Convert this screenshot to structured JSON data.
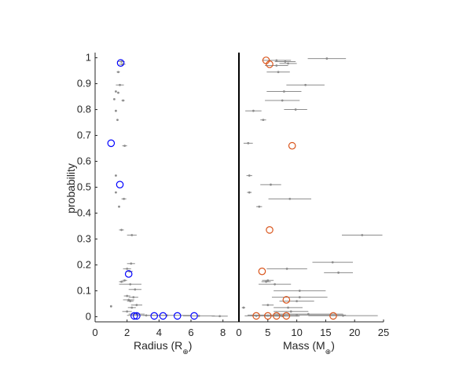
{
  "colors": {
    "axis": "#262626",
    "gray": "#8c8c8c",
    "blue": "#0000ff",
    "orange": "#d95319",
    "background": "#ffffff"
  },
  "chart_data": [
    {
      "type": "scatter",
      "ylabel": "probability",
      "xlabel_main": "Radius (R",
      "xlabel_sub": "⊕",
      "xlabel_close": ")",
      "xlim": [
        0,
        9
      ],
      "ylim": [
        -0.02,
        1.02
      ],
      "xticks": [
        "0",
        "2",
        "4",
        "6",
        "8"
      ],
      "xtick_values": [
        0,
        2,
        4,
        6,
        8
      ],
      "yticks": [
        "0",
        "0.1",
        "0.2",
        "0.3",
        "0.4",
        "0.5",
        "0.6",
        "0.7",
        "0.8",
        "0.9",
        "1"
      ],
      "ytick_values": [
        0,
        0.1,
        0.2,
        0.3,
        0.4,
        0.5,
        0.6,
        0.7,
        0.8,
        0.9,
        1
      ],
      "gray_points": [
        {
          "x": 1.65,
          "y": 0.985,
          "xerr": 0.2
        },
        {
          "x": 1.7,
          "y": 0.975,
          "xerr": 0.2
        },
        {
          "x": 1.45,
          "y": 0.945,
          "xerr": 0.1
        },
        {
          "x": 1.55,
          "y": 0.895,
          "xerr": 0.25
        },
        {
          "x": 1.3,
          "y": 0.87,
          "xerr": 0.05
        },
        {
          "x": 1.45,
          "y": 0.865,
          "xerr": 0.05
        },
        {
          "x": 1.2,
          "y": 0.84,
          "xerr": 0.05
        },
        {
          "x": 1.75,
          "y": 0.835,
          "xerr": 0.1
        },
        {
          "x": 1.3,
          "y": 0.795,
          "xerr": 0.05
        },
        {
          "x": 1.4,
          "y": 0.76,
          "xerr": 0.05
        },
        {
          "x": 1.85,
          "y": 0.66,
          "xerr": 0.15
        },
        {
          "x": 1.3,
          "y": 0.545,
          "xerr": 0.05
        },
        {
          "x": 1.3,
          "y": 0.48,
          "xerr": 0.05
        },
        {
          "x": 1.8,
          "y": 0.455,
          "xerr": 0.15
        },
        {
          "x": 1.5,
          "y": 0.425,
          "xerr": 0.05
        },
        {
          "x": 1.65,
          "y": 0.335,
          "xerr": 0.15
        },
        {
          "x": 2.3,
          "y": 0.315,
          "xerr": 0.3
        },
        {
          "x": 2.25,
          "y": 0.205,
          "xerr": 0.25
        },
        {
          "x": 2.0,
          "y": 0.185,
          "xerr": 0.25
        },
        {
          "x": 2.15,
          "y": 0.175,
          "xerr": 0.2
        },
        {
          "x": 1.85,
          "y": 0.14,
          "xerr": 0.15
        },
        {
          "x": 1.65,
          "y": 0.135,
          "xerr": 0.15
        },
        {
          "x": 2.2,
          "y": 0.125,
          "xerr": 0.7
        },
        {
          "x": 2.5,
          "y": 0.105,
          "xerr": 0.4
        },
        {
          "x": 2.0,
          "y": 0.08,
          "xerr": 0.2
        },
        {
          "x": 2.4,
          "y": 0.075,
          "xerr": 0.3
        },
        {
          "x": 2.1,
          "y": 0.065,
          "xerr": 0.35
        },
        {
          "x": 2.2,
          "y": 0.06,
          "xerr": 0.2
        },
        {
          "x": 1.0,
          "y": 0.04,
          "xerr": 0.05
        },
        {
          "x": 2.6,
          "y": 0.045,
          "xerr": 0.35
        },
        {
          "x": 2.3,
          "y": 0.035,
          "xerr": 0.25
        },
        {
          "x": 2.0,
          "y": 0.02,
          "xerr": 0.3
        },
        {
          "x": 2.6,
          "y": 0.01,
          "xerr": 0.5
        },
        {
          "x": 3.2,
          "y": 0.005,
          "xerr": 1.2
        },
        {
          "x": 4.5,
          "y": 0.005,
          "xerr": 1.5
        },
        {
          "x": 6.5,
          "y": 0.003,
          "xerr": 1.0
        },
        {
          "x": 7.8,
          "y": 0.002,
          "xerr": 0.5
        }
      ],
      "highlight_points": [
        {
          "x": 1.6,
          "y": 0.98
        },
        {
          "x": 1.0,
          "y": 0.67
        },
        {
          "x": 1.55,
          "y": 0.51
        },
        {
          "x": 2.1,
          "y": 0.165
        },
        {
          "x": 2.45,
          "y": 0.003
        },
        {
          "x": 2.6,
          "y": 0.003
        },
        {
          "x": 3.7,
          "y": 0.003
        },
        {
          "x": 4.25,
          "y": 0.003
        },
        {
          "x": 5.15,
          "y": 0.003
        },
        {
          "x": 6.2,
          "y": 0.003
        }
      ]
    },
    {
      "type": "scatter",
      "xlabel_main": "Mass (M",
      "xlabel_sub": "⊕",
      "xlabel_close": ")",
      "xlim": [
        0,
        25
      ],
      "ylim": [
        -0.02,
        1.02
      ],
      "xticks": [
        "0",
        "5",
        "10",
        "15",
        "20",
        "25"
      ],
      "xtick_values": [
        0,
        5,
        10,
        15,
        20,
        25
      ],
      "gray_points": [
        {
          "x": 15.2,
          "y": 0.997,
          "xerr": 3.3
        },
        {
          "x": 6.5,
          "y": 0.99,
          "xerr": 2.5
        },
        {
          "x": 8.0,
          "y": 0.985,
          "xerr": 1.8
        },
        {
          "x": 8.5,
          "y": 0.978,
          "xerr": 1.5
        },
        {
          "x": 6.5,
          "y": 0.97,
          "xerr": 2.0
        },
        {
          "x": 6.8,
          "y": 0.945,
          "xerr": 2.0
        },
        {
          "x": 11.5,
          "y": 0.895,
          "xerr": 3.3
        },
        {
          "x": 7.8,
          "y": 0.87,
          "xerr": 3.0
        },
        {
          "x": 7.5,
          "y": 0.835,
          "xerr": 3.0
        },
        {
          "x": 9.8,
          "y": 0.8,
          "xerr": 2.0
        },
        {
          "x": 2.5,
          "y": 0.795,
          "xerr": 1.4
        },
        {
          "x": 4.2,
          "y": 0.76,
          "xerr": 0.5
        },
        {
          "x": 1.6,
          "y": 0.67,
          "xerr": 0.8
        },
        {
          "x": 1.8,
          "y": 0.545,
          "xerr": 0.5
        },
        {
          "x": 5.5,
          "y": 0.51,
          "xerr": 1.8
        },
        {
          "x": 1.8,
          "y": 0.48,
          "xerr": 0.4
        },
        {
          "x": 8.8,
          "y": 0.455,
          "xerr": 3.7
        },
        {
          "x": 3.5,
          "y": 0.425,
          "xerr": 0.5
        },
        {
          "x": 21.3,
          "y": 0.315,
          "xerr": 3.5
        },
        {
          "x": 16.2,
          "y": 0.21,
          "xerr": 3.5
        },
        {
          "x": 8.3,
          "y": 0.185,
          "xerr": 3.5
        },
        {
          "x": 17.2,
          "y": 0.17,
          "xerr": 2.5
        },
        {
          "x": 5.0,
          "y": 0.14,
          "xerr": 1.0
        },
        {
          "x": 4.7,
          "y": 0.135,
          "xerr": 0.8
        },
        {
          "x": 6.2,
          "y": 0.125,
          "xerr": 2.8
        },
        {
          "x": 10.5,
          "y": 0.1,
          "xerr": 4.5
        },
        {
          "x": 10.5,
          "y": 0.075,
          "xerr": 4.8
        },
        {
          "x": 10.0,
          "y": 0.06,
          "xerr": 3.0
        },
        {
          "x": 5.0,
          "y": 0.045,
          "xerr": 1.0
        },
        {
          "x": 8.5,
          "y": 0.035,
          "xerr": 2.5
        },
        {
          "x": 0.8,
          "y": 0.035,
          "xerr": 0.3
        },
        {
          "x": 9.0,
          "y": 0.02,
          "xerr": 3.0
        },
        {
          "x": 12.0,
          "y": 0.01,
          "xerr": 6.0
        },
        {
          "x": 10.0,
          "y": 0.006,
          "xerr": 8.5
        },
        {
          "x": 5.0,
          "y": 0.004,
          "xerr": 3.0
        },
        {
          "x": 18.0,
          "y": 0.004,
          "xerr": 6.0
        },
        {
          "x": 3.0,
          "y": 0.003,
          "xerr": 2.0
        },
        {
          "x": 7.5,
          "y": 0.002,
          "xerr": 3.0
        }
      ],
      "highlight_points": [
        {
          "x": 4.7,
          "y": 0.99
        },
        {
          "x": 5.3,
          "y": 0.975
        },
        {
          "x": 9.2,
          "y": 0.66
        },
        {
          "x": 5.3,
          "y": 0.335
        },
        {
          "x": 4.0,
          "y": 0.175
        },
        {
          "x": 8.2,
          "y": 0.065
        },
        {
          "x": 3.0,
          "y": 0.003
        },
        {
          "x": 5.0,
          "y": 0.003
        },
        {
          "x": 6.5,
          "y": 0.003
        },
        {
          "x": 8.2,
          "y": 0.003
        },
        {
          "x": 16.3,
          "y": 0.003
        }
      ]
    }
  ]
}
